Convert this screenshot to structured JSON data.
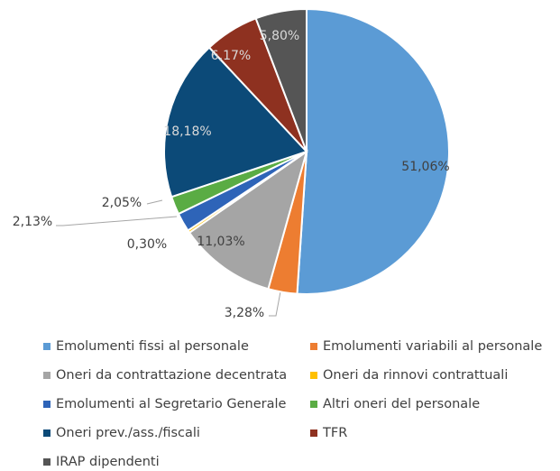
{
  "chart_data": {
    "type": "pie",
    "categories": [
      "Emolumenti fissi al personale",
      "Emolumenti variabili al personale",
      "Oneri da contrattazione decentrata",
      "Oneri da rinnovi contrattuali",
      "Emolumenti al Segretario Generale",
      "Altri oneri del personale",
      "Oneri prev./ass./fiscali",
      "TFR",
      "IRAP dipendenti"
    ],
    "values": [
      51.06,
      3.28,
      11.03,
      0.3,
      2.13,
      2.05,
      18.18,
      6.17,
      5.8
    ],
    "value_labels": [
      "51,06%",
      "3,28%",
      "11,03%",
      "0,30%",
      "2,13%",
      "2,05%",
      "18,18%",
      "6,17%",
      "5,80%"
    ],
    "colors": [
      "#5b9bd5",
      "#ed7d31",
      "#a5a5a5",
      "#ffc000",
      "#2e64b8",
      "#5aac44",
      "#0c4a78",
      "#8e3120",
      "#555555"
    ]
  }
}
